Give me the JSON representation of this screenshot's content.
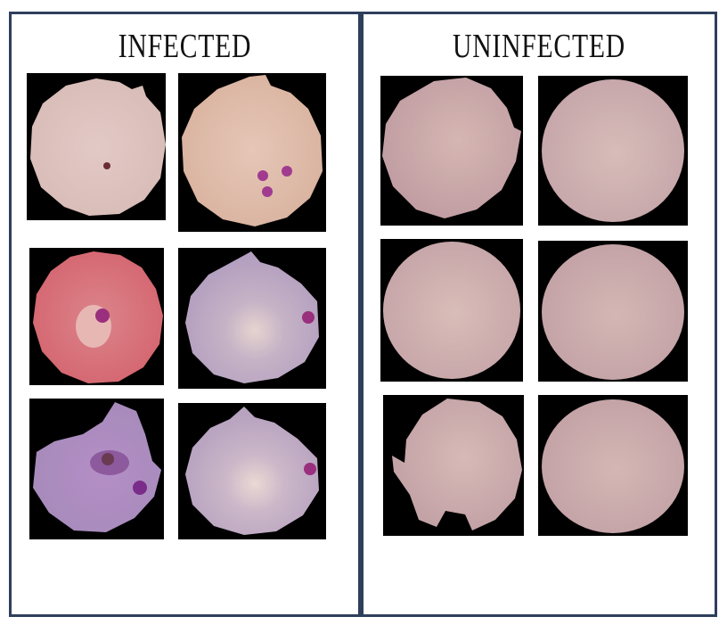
{
  "panels": {
    "infected": {
      "title": "INFECTED"
    },
    "uninfected": {
      "title": "UNINFECTED"
    }
  },
  "colors": {
    "border": "#2e3f5c",
    "tile_background": "#000000",
    "cell_infected_pale": "#dcc0bb",
    "cell_infected_pink": "#d9767e",
    "cell_infected_purple": "#bda7c2",
    "cell_uninfected": "#c9a6a8",
    "parasite": "#a23d98"
  },
  "images": {
    "infected": [
      {
        "id": "infected-cell-1",
        "description_icon": "infected-cell-icon"
      },
      {
        "id": "infected-cell-2",
        "description_icon": "infected-cell-icon"
      },
      {
        "id": "infected-cell-3",
        "description_icon": "infected-cell-icon"
      },
      {
        "id": "infected-cell-4",
        "description_icon": "infected-cell-icon"
      },
      {
        "id": "infected-cell-5",
        "description_icon": "infected-cell-icon"
      },
      {
        "id": "infected-cell-6",
        "description_icon": "infected-cell-icon"
      }
    ],
    "uninfected": [
      {
        "id": "uninfected-cell-1",
        "description_icon": "uninfected-cell-icon"
      },
      {
        "id": "uninfected-cell-2",
        "description_icon": "uninfected-cell-icon"
      },
      {
        "id": "uninfected-cell-3",
        "description_icon": "uninfected-cell-icon"
      },
      {
        "id": "uninfected-cell-4",
        "description_icon": "uninfected-cell-icon"
      },
      {
        "id": "uninfected-cell-5",
        "description_icon": "uninfected-cell-icon"
      },
      {
        "id": "uninfected-cell-6",
        "description_icon": "uninfected-cell-icon"
      }
    ]
  }
}
